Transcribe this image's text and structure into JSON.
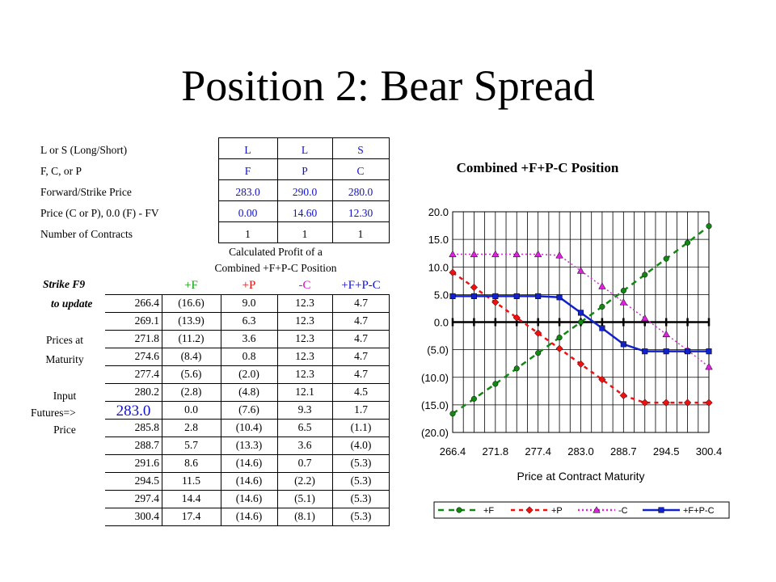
{
  "slide": {
    "title": "Position 2:  Bear Spread"
  },
  "inputs": {
    "rows": [
      {
        "label": "L or S (Long/Short)",
        "values": [
          "L",
          "L",
          "S"
        ]
      },
      {
        "label": "F, C, or P",
        "values": [
          "F",
          "P",
          "C"
        ]
      },
      {
        "label": "Forward/Strike Price",
        "values": [
          "283.0",
          "290.0",
          "280.0"
        ]
      },
      {
        "label": "Price (C or P), 0.0 (F) - FV",
        "values": [
          "0.00",
          "14.60",
          "12.30"
        ]
      },
      {
        "label": "Number of Contracts",
        "values": [
          "1",
          "1",
          "1"
        ]
      }
    ]
  },
  "profit": {
    "caption_line1": "Calculated Profit of a",
    "caption_line2": "Combined +F+P-C Position",
    "headers": [
      "+F",
      "+P",
      "-C",
      "+F+P-C"
    ],
    "side_strike_line1": "Strike  F9",
    "side_strike_line2": "to update",
    "side_prices_line1": "Prices at",
    "side_prices_line2": "Maturity",
    "side_input_line1": "Input",
    "side_input_line2": "Futures=>",
    "side_input_line3": "Price",
    "futures_input": "283.0",
    "rows": [
      [
        "266.4",
        "(16.6)",
        "9.0",
        "12.3",
        "4.7"
      ],
      [
        "269.1",
        "(13.9)",
        "6.3",
        "12.3",
        "4.7"
      ],
      [
        "271.8",
        "(11.2)",
        "3.6",
        "12.3",
        "4.7"
      ],
      [
        "274.6",
        "(8.4)",
        "0.8",
        "12.3",
        "4.7"
      ],
      [
        "277.4",
        "(5.6)",
        "(2.0)",
        "12.3",
        "4.7"
      ],
      [
        "280.2",
        "(2.8)",
        "(4.8)",
        "12.1",
        "4.5"
      ],
      [
        "",
        "0.0",
        "(7.6)",
        "9.3",
        "1.7"
      ],
      [
        "285.8",
        "2.8",
        "(10.4)",
        "6.5",
        "(1.1)"
      ],
      [
        "288.7",
        "5.7",
        "(13.3)",
        "3.6",
        "(4.0)"
      ],
      [
        "291.6",
        "8.6",
        "(14.6)",
        "0.7",
        "(5.3)"
      ],
      [
        "294.5",
        "11.5",
        "(14.6)",
        "(2.2)",
        "(5.3)"
      ],
      [
        "297.4",
        "14.4",
        "(14.6)",
        "(5.1)",
        "(5.3)"
      ],
      [
        "300.4",
        "17.4",
        "(14.6)",
        "(8.1)",
        "(5.3)"
      ]
    ]
  },
  "chart_data": {
    "type": "line",
    "title": "Combined +F+P-C Position",
    "xlabel": "Price at Contract Maturity",
    "ylabel": "",
    "categories": [
      "266.4",
      "269.1",
      "271.8",
      "274.6",
      "277.4",
      "280.2",
      "283.0",
      "285.8",
      "288.7",
      "291.6",
      "294.5",
      "297.4",
      "300.4"
    ],
    "x_tick_labels": [
      "266.4",
      "271.8",
      "277.4",
      "283.0",
      "288.7",
      "294.5",
      "300.4"
    ],
    "y_tick_labels": [
      "20.0",
      "15.0",
      "10.0",
      "5.0",
      "0.0",
      "(5.0)",
      "(10.0)",
      "(15.0)",
      "(20.0)"
    ],
    "ylim": [
      -20,
      20
    ],
    "y_ticks": [
      20,
      15,
      10,
      5,
      0,
      -5,
      -10,
      -15,
      -20
    ],
    "grid": true,
    "legend_position": "bottom",
    "series": [
      {
        "name": "+F",
        "color": "#118811",
        "marker": "circle",
        "dash": "long-dash",
        "values": [
          -16.6,
          -13.9,
          -11.2,
          -8.4,
          -5.6,
          -2.8,
          0.0,
          2.8,
          5.7,
          8.6,
          11.5,
          14.4,
          17.4
        ]
      },
      {
        "name": "+P",
        "color": "#ee1111",
        "marker": "diamond",
        "dash": "dash",
        "values": [
          9.0,
          6.3,
          3.6,
          0.8,
          -2.0,
          -4.8,
          -7.6,
          -10.4,
          -13.3,
          -14.6,
          -14.6,
          -14.6,
          -14.6
        ]
      },
      {
        "name": "-C",
        "color": "#dd22dd",
        "marker": "triangle",
        "dash": "dot",
        "values": [
          12.3,
          12.3,
          12.3,
          12.3,
          12.3,
          12.1,
          9.3,
          6.5,
          3.6,
          0.7,
          -2.2,
          -5.1,
          -8.1
        ]
      },
      {
        "name": "+F+P-C",
        "color": "#1122cc",
        "marker": "square",
        "dash": "solid",
        "values": [
          4.7,
          4.7,
          4.7,
          4.7,
          4.7,
          4.5,
          1.7,
          -1.1,
          -4.0,
          -5.3,
          -5.3,
          -5.3,
          -5.3
        ]
      }
    ]
  }
}
